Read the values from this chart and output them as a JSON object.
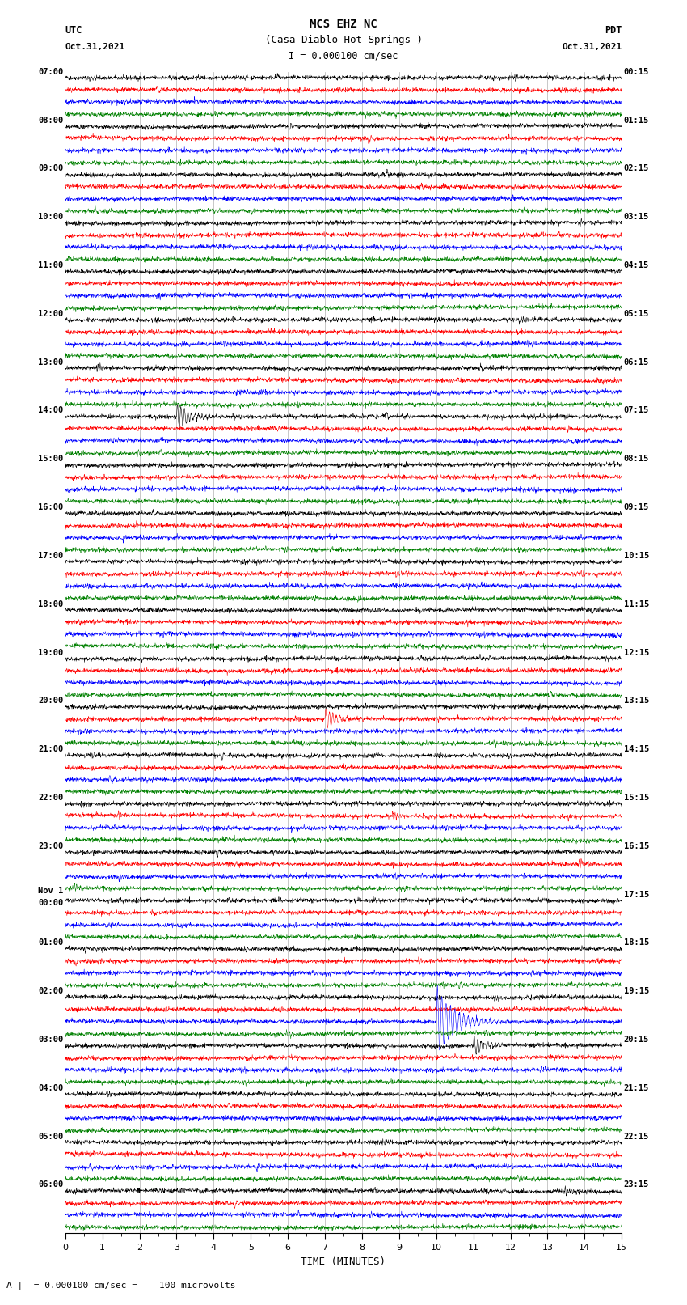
{
  "title_line1": "MCS EHZ NC",
  "title_line2": "(Casa Diablo Hot Springs )",
  "title_scale": "I = 0.000100 cm/sec",
  "utc_label": "UTC",
  "utc_date": "Oct.31,2021",
  "pdt_label": "PDT",
  "pdt_date": "Oct.31,2021",
  "xlabel": "TIME (MINUTES)",
  "footer": "A |  = 0.000100 cm/sec =    100 microvolts",
  "trace_colors": [
    "black",
    "red",
    "blue",
    "green"
  ],
  "num_groups": 24,
  "traces_per_group": 4,
  "x_min": 0,
  "x_max": 15,
  "left_labels": [
    "07:00",
    "08:00",
    "09:00",
    "10:00",
    "11:00",
    "12:00",
    "13:00",
    "14:00",
    "15:00",
    "16:00",
    "17:00",
    "18:00",
    "19:00",
    "20:00",
    "21:00",
    "22:00",
    "23:00",
    "Nov 1\n00:00",
    "01:00",
    "02:00",
    "03:00",
    "04:00",
    "05:00",
    "06:00"
  ],
  "right_labels": [
    "00:15",
    "01:15",
    "02:15",
    "03:15",
    "04:15",
    "05:15",
    "06:15",
    "07:15",
    "08:15",
    "09:15",
    "10:15",
    "11:15",
    "12:15",
    "13:15",
    "14:15",
    "15:15",
    "16:15",
    "17:15",
    "18:15",
    "19:15",
    "20:15",
    "21:15",
    "22:15",
    "23:15"
  ],
  "bg_color": "white",
  "trace_amplitude": 0.3,
  "noise_base": 0.06,
  "seed": 42
}
